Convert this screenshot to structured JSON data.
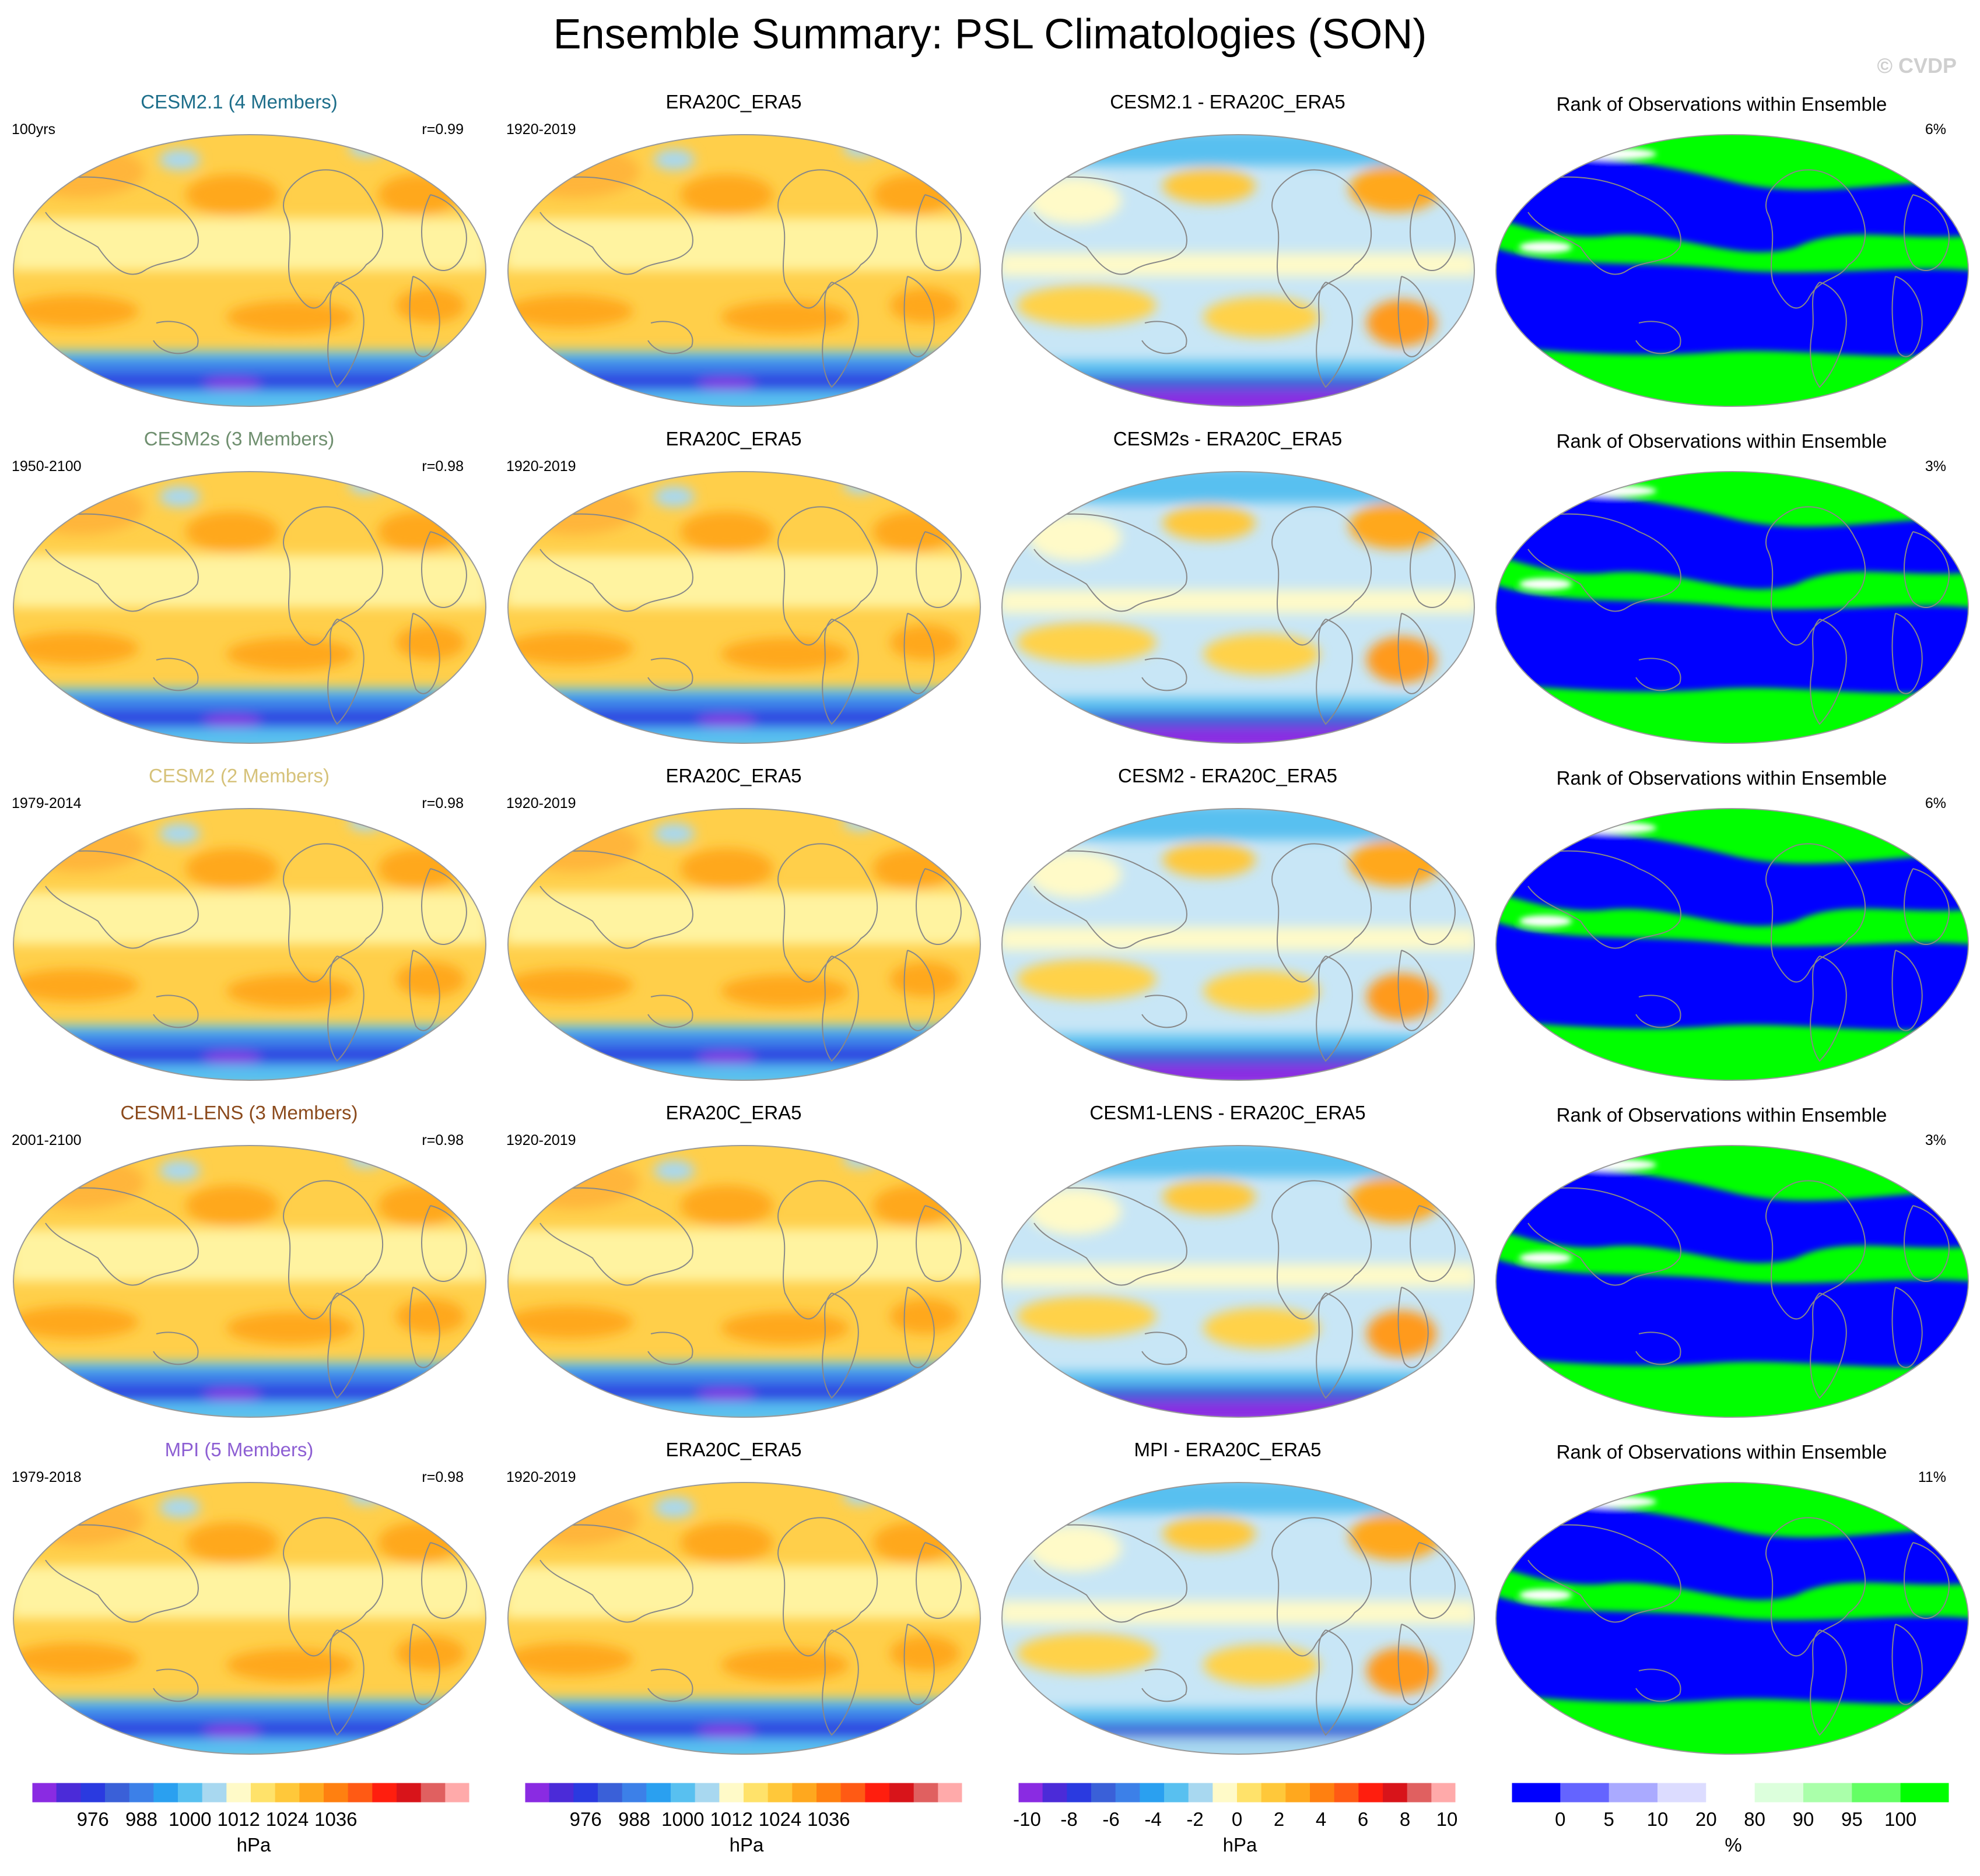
{
  "title": "Ensemble Summary: PSL Climatologies (SON)",
  "watermark": "© CVDP",
  "rows": [
    {
      "model": {
        "title": "CESM2.1 (4 Members)",
        "title_color": "#1d6e8a",
        "years": "100yrs",
        "r": "r=0.99"
      },
      "obs": {
        "title": "ERA20C_ERA5",
        "years": "1920-2019"
      },
      "diff": {
        "title": "CESM2.1 - ERA20C_ERA5"
      },
      "rank": {
        "title": "Rank of Observations within Ensemble",
        "pct": "6%"
      }
    },
    {
      "model": {
        "title": "CESM2s (3 Members)",
        "title_color": "#6f8f6f",
        "years": "1950-2100",
        "r": "r=0.98"
      },
      "obs": {
        "title": "ERA20C_ERA5",
        "years": "1920-2019"
      },
      "diff": {
        "title": "CESM2s - ERA20C_ERA5"
      },
      "rank": {
        "title": "Rank of Observations within Ensemble",
        "pct": "3%"
      }
    },
    {
      "model": {
        "title": "CESM2 (2 Members)",
        "title_color": "#d6c27a",
        "years": "1979-2014",
        "r": "r=0.98"
      },
      "obs": {
        "title": "ERA20C_ERA5",
        "years": "1920-2019"
      },
      "diff": {
        "title": "CESM2 - ERA20C_ERA5"
      },
      "rank": {
        "title": "Rank of Observations within Ensemble",
        "pct": "6%"
      }
    },
    {
      "model": {
        "title": "CESM1-LENS (3 Members)",
        "title_color": "#8b4a1c",
        "years": "2001-2100",
        "r": "r=0.98"
      },
      "obs": {
        "title": "ERA20C_ERA5",
        "years": "1920-2019"
      },
      "diff": {
        "title": "CESM1-LENS - ERA20C_ERA5"
      },
      "rank": {
        "title": "Rank of Observations within Ensemble",
        "pct": "3%"
      }
    },
    {
      "model": {
        "title": "MPI (5 Members)",
        "title_color": "#8d5fd3",
        "years": "1979-2018",
        "r": "r=0.98"
      },
      "obs": {
        "title": "ERA20C_ERA5",
        "years": "1920-2019"
      },
      "diff": {
        "title": "MPI - ERA20C_ERA5"
      },
      "rank": {
        "title": "Rank of Observations within Ensemble",
        "pct": "11%"
      }
    }
  ],
  "colorbars": [
    {
      "name": "psl",
      "unit": "hPa",
      "ticks": [
        "976",
        "988",
        "1000",
        "1012",
        "1024",
        "1036"
      ],
      "colors": [
        "#8a2be2",
        "#4b2bd8",
        "#2a3ae0",
        "#3a60d8",
        "#3c80e8",
        "#2aa0f0",
        "#58c0f0",
        "#a8d8f0",
        "#fffac8",
        "#ffe26a",
        "#ffc83a",
        "#ffa81e",
        "#ff8010",
        "#ff5a14",
        "#ff1e0e",
        "#d8141a",
        "#e06060",
        "#ffaaaa"
      ]
    },
    {
      "name": "psl-obs",
      "unit": "hPa",
      "ticks": [
        "976",
        "988",
        "1000",
        "1012",
        "1024",
        "1036"
      ],
      "colors": [
        "#8a2be2",
        "#4b2bd8",
        "#2a3ae0",
        "#3a60d8",
        "#3c80e8",
        "#2aa0f0",
        "#58c0f0",
        "#a8d8f0",
        "#fffac8",
        "#ffe26a",
        "#ffc83a",
        "#ffa81e",
        "#ff8010",
        "#ff5a14",
        "#ff1e0e",
        "#d8141a",
        "#e06060",
        "#ffaaaa"
      ]
    },
    {
      "name": "diff",
      "unit": "hPa",
      "ticks": [
        "-10",
        "-8",
        "-6",
        "-4",
        "-2",
        "0",
        "2",
        "4",
        "6",
        "8",
        "10"
      ],
      "colors": [
        "#8a2be2",
        "#4b2bd8",
        "#2a3ae0",
        "#3a60d8",
        "#3c80e8",
        "#2aa0f0",
        "#58c0f0",
        "#a8d8f0",
        "#fffac8",
        "#ffe26a",
        "#ffc83a",
        "#ffa81e",
        "#ff8010",
        "#ff5a14",
        "#ff1e0e",
        "#d8141a",
        "#e06060",
        "#ffaaaa"
      ]
    },
    {
      "name": "rank",
      "unit": "%",
      "ticks": [
        "0",
        "5",
        "10",
        "20",
        "80",
        "90",
        "95",
        "100"
      ],
      "colors": [
        "#0000ff",
        "#6464ff",
        "#aaaaff",
        "#dcdcff",
        "#ffffff",
        "#dcffdc",
        "#aaffaa",
        "#64ff64",
        "#00ff00"
      ]
    }
  ],
  "colors": {
    "ocean_warm": "#ffcf4a",
    "subtropic_high": "#ffa81e",
    "tropics": "#fff3a0",
    "southern_low": "#2a3ae0",
    "antarctic": "#58c0f0",
    "rank_low": "#0000ff",
    "rank_high": "#00ff00"
  }
}
